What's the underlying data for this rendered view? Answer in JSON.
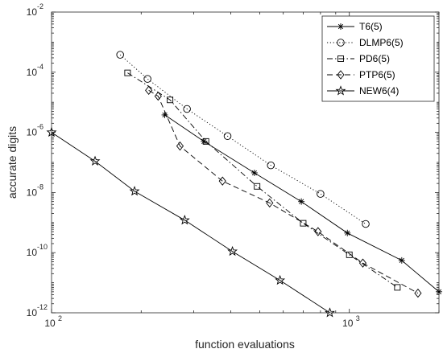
{
  "chart_data": {
    "type": "line",
    "xlabel": "function evaluations",
    "ylabel": "accurate digits",
    "xscale": "log",
    "yscale": "log",
    "xlim": [
      100,
      2000
    ],
    "ylim": [
      1e-12,
      0.01
    ],
    "x_ticks": [
      {
        "value": 100,
        "base": "10",
        "exp": "2"
      },
      {
        "value": 1000,
        "base": "10",
        "exp": "3"
      }
    ],
    "y_ticks": [
      {
        "value": 1e-12,
        "base": "10",
        "exp": "-12"
      },
      {
        "value": 1e-10,
        "base": "10",
        "exp": "-10"
      },
      {
        "value": 1e-08,
        "base": "10",
        "exp": "-8"
      },
      {
        "value": 1e-06,
        "base": "10",
        "exp": "-6"
      },
      {
        "value": 0.0001,
        "base": "10",
        "exp": "-4"
      },
      {
        "value": 0.01,
        "base": "10",
        "exp": "-2"
      }
    ],
    "grid": false,
    "legend_position": "top-right",
    "series": [
      {
        "name": "T6(5)",
        "line": "solid",
        "marker": "asterisk",
        "x": [
          240,
          325,
          480,
          690,
          985,
          1500,
          2000
        ],
        "y": [
          3.8e-06,
          5e-07,
          4.5e-08,
          5e-09,
          4.5e-10,
          5.5e-11,
          5e-12
        ]
      },
      {
        "name": "DLMP6(5)",
        "line": "dotted",
        "marker": "circle",
        "x": [
          170,
          210,
          285,
          390,
          545,
          800,
          1135
        ],
        "y": [
          0.00038,
          6e-05,
          6e-06,
          7.5e-07,
          8e-08,
          9e-09,
          9e-10
        ]
      },
      {
        "name": "PD6(5)",
        "line": "dashdot",
        "marker": "square",
        "x": [
          180,
          250,
          330,
          490,
          700,
          1000,
          1450
        ],
        "y": [
          9.5e-05,
          1.2e-05,
          5e-07,
          1.6e-08,
          9.5e-10,
          8.5e-11,
          7e-12
        ]
      },
      {
        "name": "PTP6(5)",
        "line": "dashed",
        "marker": "diamond",
        "x": [
          212,
          228,
          270,
          375,
          540,
          785,
          1110,
          1700
        ],
        "y": [
          2.5e-05,
          1.6e-05,
          3.5e-07,
          2.4e-08,
          4.5e-09,
          5e-10,
          4.5e-11,
          4.5e-12
        ]
      },
      {
        "name": "NEW6(4)",
        "line": "solid",
        "marker": "star",
        "x": [
          100,
          140,
          190,
          280,
          405,
          585,
          860
        ],
        "y": [
          1e-06,
          1.1e-07,
          1.1e-08,
          1.2e-09,
          1.1e-10,
          1.2e-11,
          1e-12
        ]
      }
    ]
  }
}
